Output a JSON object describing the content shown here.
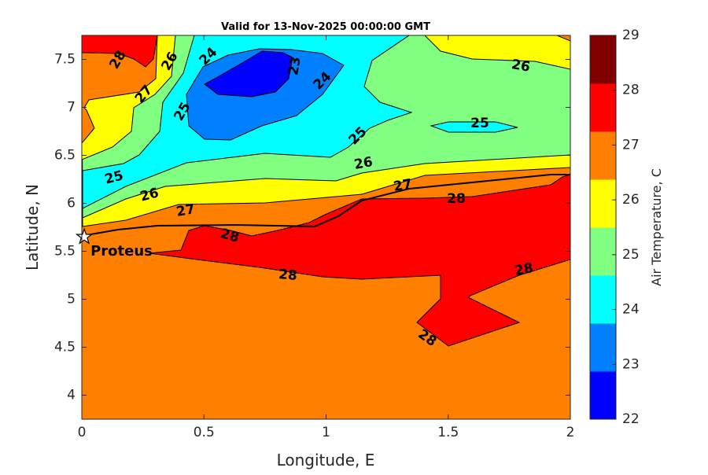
{
  "chart_data": {
    "type": "heatmap",
    "subtype": "filled-contour",
    "title": "Valid for 13-Nov-2025 00:00:00 GMT",
    "xlabel": "Longitude, E",
    "ylabel": "Latitude, N",
    "xlim": [
      0,
      2
    ],
    "ylim": [
      3.75,
      7.75
    ],
    "xticks": [
      "0",
      "0.5",
      "1",
      "1.5",
      "2"
    ],
    "yticks": [
      "4",
      "4.5",
      "5",
      "5.5",
      "6",
      "6.5",
      "7",
      "7.5"
    ],
    "contour_levels": [
      23,
      24,
      25,
      26,
      27,
      28
    ],
    "colorbar": {
      "label": "Air Temperature, C",
      "range": [
        22,
        29
      ],
      "ticks": [
        "22",
        "23",
        "24",
        "25",
        "26",
        "27",
        "28",
        "29"
      ],
      "colors": [
        "#0000ff",
        "#0080ff",
        "#00ffff",
        "#80ff80",
        "#ffff00",
        "#ff8000",
        "#ff0000",
        "#800000"
      ]
    },
    "contour_labels": [
      "28",
      "27",
      "26",
      "25",
      "24",
      "23",
      "24",
      "25",
      "26",
      "25",
      "25",
      "26",
      "27",
      "26",
      "27",
      "28",
      "28",
      "28",
      "28",
      "28"
    ],
    "marker": {
      "label": "Proteus",
      "lon": 0.01,
      "lat": 5.65,
      "symbol": "star"
    }
  }
}
